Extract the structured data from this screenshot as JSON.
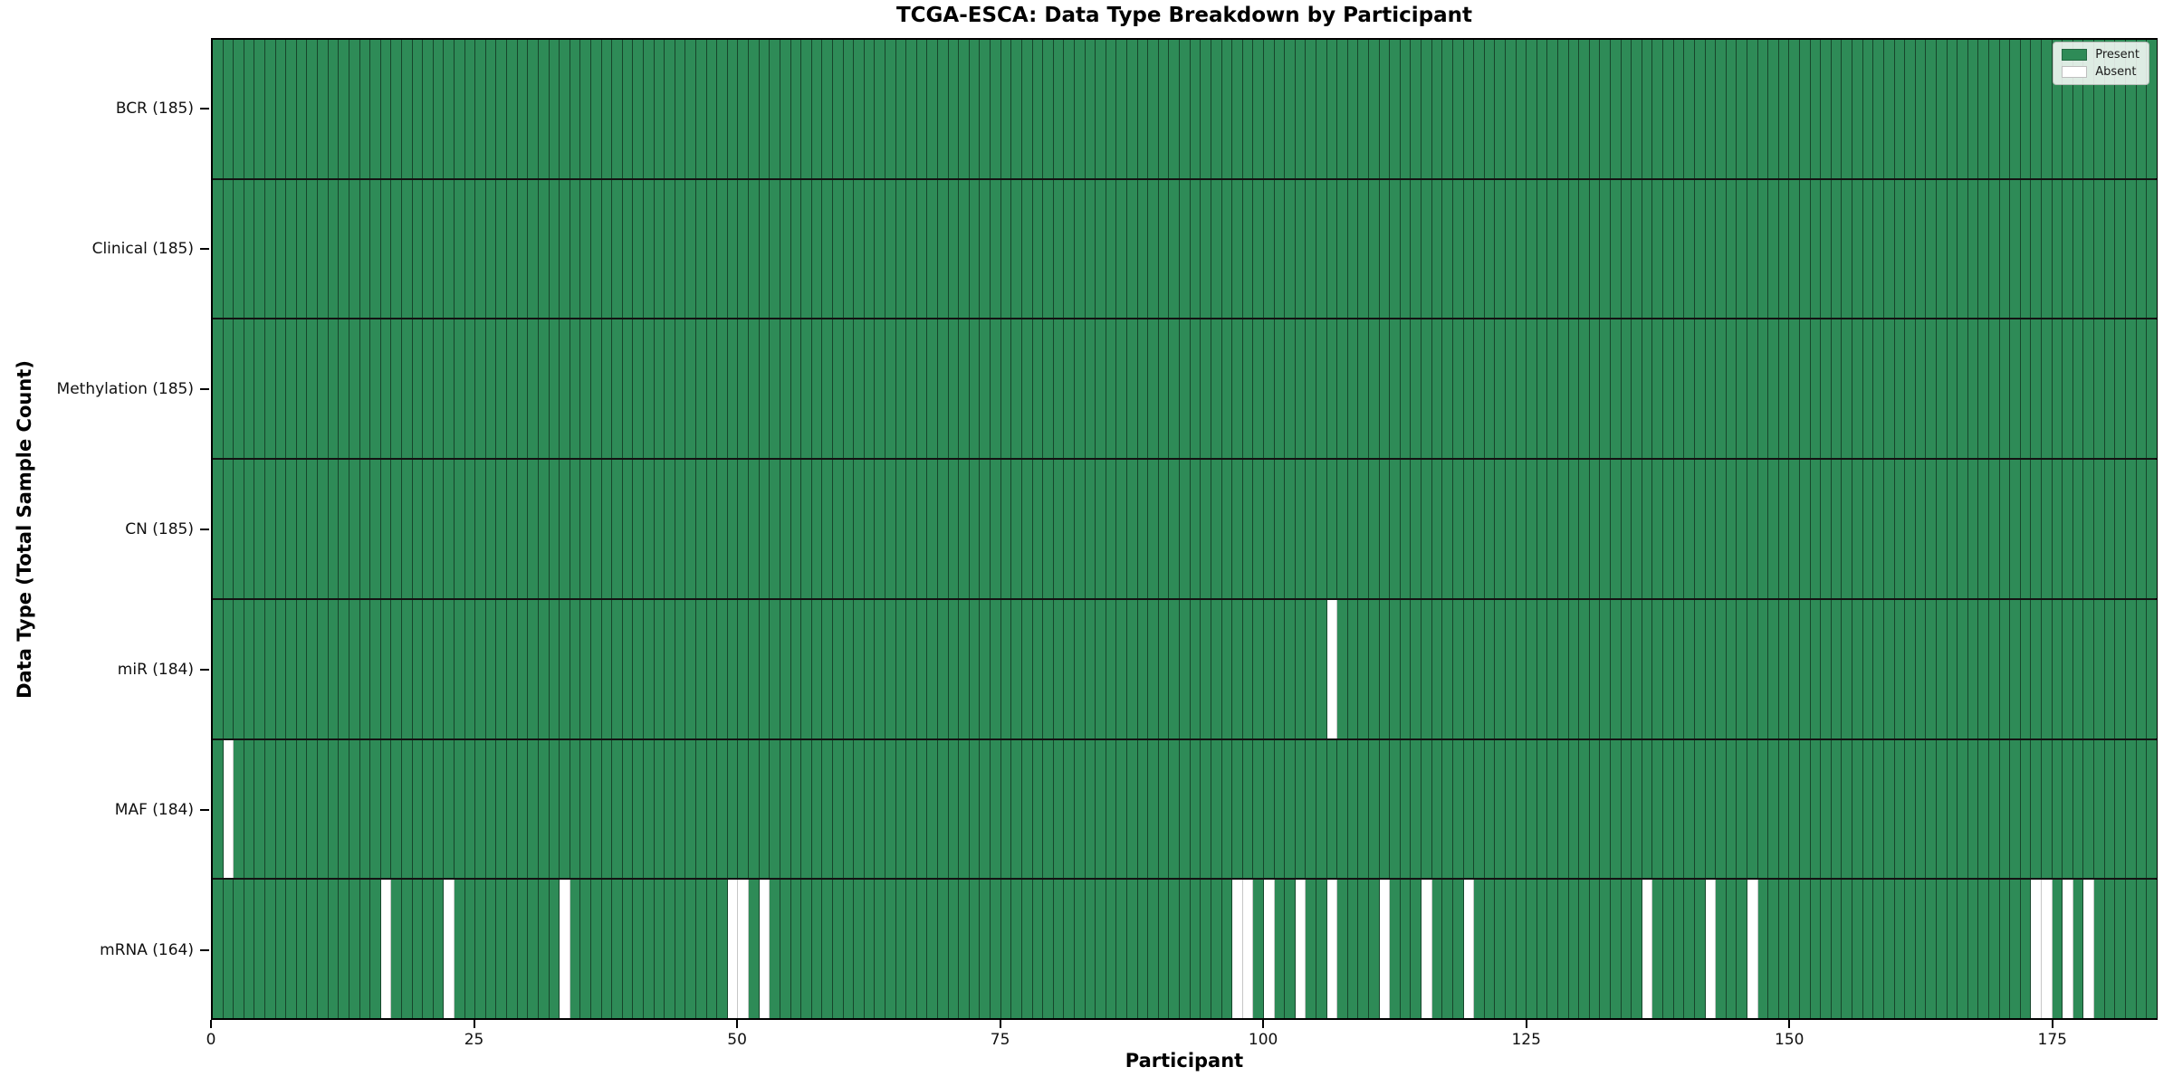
{
  "chart_data": {
    "type": "heatmap",
    "title": "TCGA-ESCA: Data Type Breakdown by Participant",
    "xlabel": "Participant",
    "ylabel": "Data Type (Total Sample Count)",
    "n_participants": 185,
    "x_range": [
      0,
      185
    ],
    "x_tick_values": [
      0,
      25,
      50,
      75,
      100,
      125,
      150,
      175
    ],
    "x_tick_labels": [
      "0",
      "25",
      "50",
      "75",
      "100",
      "125",
      "150",
      "175"
    ],
    "grid": true,
    "legend_position": "upper-right",
    "legend": [
      {
        "label": "Present",
        "color": "#2e8b57"
      },
      {
        "label": "Absent",
        "color": "#ffffff"
      }
    ],
    "colors": {
      "present": "#2e8b57",
      "absent": "#ffffff",
      "plot_border": "#000000"
    },
    "rows": [
      {
        "name": "BCR",
        "label": "BCR (185)",
        "present_count": 185,
        "absent_participants": []
      },
      {
        "name": "Clinical",
        "label": "Clinical (185)",
        "present_count": 185,
        "absent_participants": []
      },
      {
        "name": "Methylation",
        "label": "Methylation (185)",
        "present_count": 185,
        "absent_participants": []
      },
      {
        "name": "CN",
        "label": "CN (185)",
        "present_count": 185,
        "absent_participants": []
      },
      {
        "name": "miR",
        "label": "miR (184)",
        "present_count": 184,
        "absent_participants": [
          106
        ]
      },
      {
        "name": "MAF",
        "label": "MAF (184)",
        "present_count": 184,
        "absent_participants": [
          1
        ]
      },
      {
        "name": "mRNA",
        "label": "mRNA (164)",
        "present_count": 164,
        "absent_participants": [
          16,
          22,
          33,
          49,
          50,
          52,
          97,
          98,
          100,
          103,
          106,
          111,
          115,
          119,
          136,
          142,
          146,
          173,
          174,
          176,
          178
        ]
      }
    ]
  }
}
